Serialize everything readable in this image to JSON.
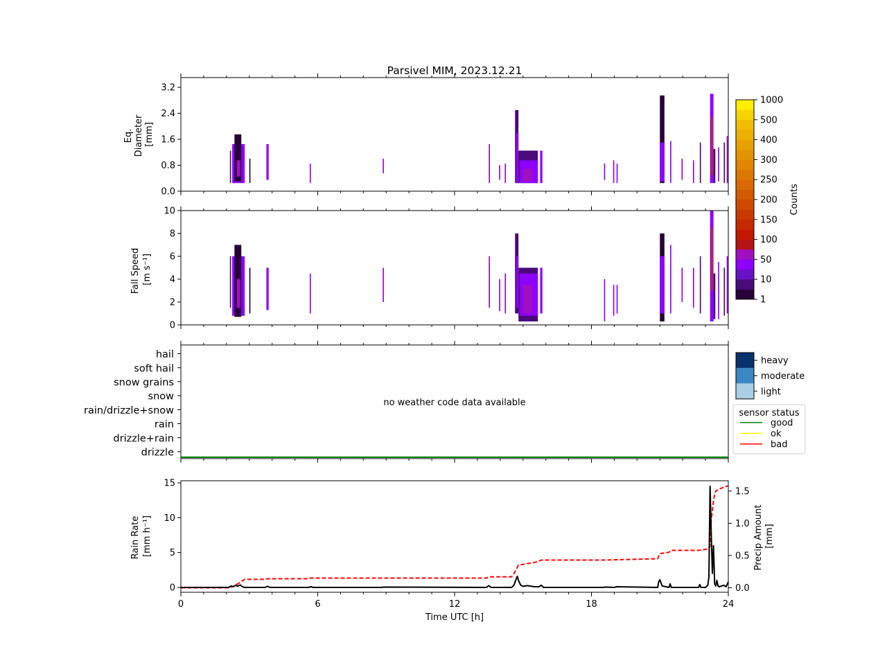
{
  "figure": {
    "title": "Parsivel MIM, 2023.12.21"
  },
  "chart_data": [
    {
      "panel": "diameter",
      "type": "heatmap",
      "ylabel": [
        "Eq.",
        "Diameter",
        "[mm]"
      ],
      "xlim": [
        0,
        24
      ],
      "ylim": [
        0,
        3.5
      ],
      "yticks": [
        0.0,
        0.8,
        1.6,
        2.4,
        3.2
      ],
      "ytick_labels": [
        "0.0",
        "0.8",
        "1.6",
        "2.4",
        "3.2"
      ],
      "bands": [
        {
          "x": 2.15,
          "w": 0.05,
          "y0": 0.25,
          "y1": 1.25,
          "c": 1
        },
        {
          "x": 2.25,
          "w": 0.55,
          "y0": 0.25,
          "y1": 1.45,
          "c": 2
        },
        {
          "x": 2.35,
          "w": 0.3,
          "y0": 0.3,
          "y1": 1.75,
          "c": 0
        },
        {
          "x": 2.45,
          "w": 0.15,
          "y0": 0.45,
          "y1": 0.95,
          "c": 3
        },
        {
          "x": 3.0,
          "w": 0.05,
          "y0": 0.25,
          "y1": 1.0,
          "c": 0
        },
        {
          "x": 3.75,
          "w": 0.1,
          "y0": 0.35,
          "y1": 1.45,
          "c": 2
        },
        {
          "x": 5.65,
          "w": 0.05,
          "y0": 0.25,
          "y1": 0.85,
          "c": 2
        },
        {
          "x": 8.85,
          "w": 0.05,
          "y0": 0.55,
          "y1": 1.0,
          "c": 2
        },
        {
          "x": 13.5,
          "w": 0.05,
          "y0": 0.25,
          "y1": 1.45,
          "c": 2
        },
        {
          "x": 13.95,
          "w": 0.05,
          "y0": 0.35,
          "y1": 0.8,
          "c": 2
        },
        {
          "x": 14.2,
          "w": 0.05,
          "y0": 0.25,
          "y1": 0.85,
          "c": 2
        },
        {
          "x": 14.65,
          "w": 0.15,
          "y0": 0.25,
          "y1": 2.5,
          "c": 1
        },
        {
          "x": 14.7,
          "w": 0.1,
          "y0": 0.25,
          "y1": 1.8,
          "c": 2
        },
        {
          "x": 14.8,
          "w": 0.85,
          "y0": 0.25,
          "y1": 1.25,
          "c": 1
        },
        {
          "x": 14.85,
          "w": 0.8,
          "y0": 0.25,
          "y1": 0.95,
          "c": 2
        },
        {
          "x": 15.0,
          "w": 0.4,
          "y0": 0.3,
          "y1": 0.7,
          "c": 3
        },
        {
          "x": 15.75,
          "w": 0.1,
          "y0": 0.25,
          "y1": 1.25,
          "c": 2
        },
        {
          "x": 18.55,
          "w": 0.05,
          "y0": 0.35,
          "y1": 0.85,
          "c": 2
        },
        {
          "x": 18.95,
          "w": 0.05,
          "y0": 0.25,
          "y1": 0.95,
          "c": 2
        },
        {
          "x": 19.1,
          "w": 0.05,
          "y0": 0.25,
          "y1": 0.85,
          "c": 2
        },
        {
          "x": 21.0,
          "w": 0.2,
          "y0": 0.25,
          "y1": 2.95,
          "c": 0
        },
        {
          "x": 21.0,
          "w": 0.2,
          "y0": 0.3,
          "y1": 1.5,
          "c": 2
        },
        {
          "x": 21.45,
          "w": 0.05,
          "y0": 0.25,
          "y1": 1.55,
          "c": 2
        },
        {
          "x": 21.95,
          "w": 0.05,
          "y0": 0.35,
          "y1": 1.0,
          "c": 2
        },
        {
          "x": 22.45,
          "w": 0.05,
          "y0": 0.25,
          "y1": 0.95,
          "c": 2
        },
        {
          "x": 22.75,
          "w": 0.05,
          "y0": 0.25,
          "y1": 1.5,
          "c": 1
        },
        {
          "x": 23.2,
          "w": 0.15,
          "y0": 0.25,
          "y1": 3.0,
          "c": 2
        },
        {
          "x": 23.25,
          "w": 0.07,
          "y0": 0.5,
          "y1": 2.3,
          "c": 6
        },
        {
          "x": 23.35,
          "w": 0.08,
          "y0": 0.25,
          "y1": 1.3,
          "c": 1
        },
        {
          "x": 23.55,
          "w": 0.05,
          "y0": 0.3,
          "y1": 1.35,
          "c": 2
        },
        {
          "x": 23.8,
          "w": 0.05,
          "y0": 0.25,
          "y1": 1.5,
          "c": 1
        },
        {
          "x": 23.93,
          "w": 0.05,
          "y0": 0.25,
          "y1": 1.7,
          "c": 2
        }
      ]
    },
    {
      "panel": "fallspeed",
      "type": "heatmap",
      "ylabel": [
        "Fall Speed",
        "[m s⁻¹]"
      ],
      "xlim": [
        0,
        24
      ],
      "ylim": [
        0,
        10
      ],
      "yticks": [
        0,
        2,
        4,
        6,
        8,
        10
      ],
      "ytick_labels": [
        "0",
        "2",
        "4",
        "6",
        "8",
        "10"
      ],
      "bands": [
        {
          "x": 2.15,
          "w": 0.05,
          "y0": 1.5,
          "y1": 6.0,
          "c": 1
        },
        {
          "x": 2.25,
          "w": 0.55,
          "y0": 0.8,
          "y1": 6.0,
          "c": 2
        },
        {
          "x": 2.35,
          "w": 0.3,
          "y0": 0.7,
          "y1": 7.0,
          "c": 0
        },
        {
          "x": 2.45,
          "w": 0.15,
          "y0": 1.5,
          "y1": 4.0,
          "c": 3
        },
        {
          "x": 3.0,
          "w": 0.05,
          "y0": 1.0,
          "y1": 5.0,
          "c": 0
        },
        {
          "x": 3.75,
          "w": 0.1,
          "y0": 1.3,
          "y1": 5.0,
          "c": 2
        },
        {
          "x": 5.65,
          "w": 0.05,
          "y0": 1.0,
          "y1": 4.5,
          "c": 2
        },
        {
          "x": 8.85,
          "w": 0.05,
          "y0": 2.0,
          "y1": 5.0,
          "c": 2
        },
        {
          "x": 13.5,
          "w": 0.05,
          "y0": 1.5,
          "y1": 6.0,
          "c": 2
        },
        {
          "x": 13.95,
          "w": 0.05,
          "y0": 1.2,
          "y1": 4.0,
          "c": 2
        },
        {
          "x": 14.2,
          "w": 0.05,
          "y0": 1.0,
          "y1": 4.5,
          "c": 2
        },
        {
          "x": 14.65,
          "w": 0.15,
          "y0": 1.0,
          "y1": 8.0,
          "c": 1
        },
        {
          "x": 14.7,
          "w": 0.1,
          "y0": 1.5,
          "y1": 6.0,
          "c": 2
        },
        {
          "x": 14.8,
          "w": 0.85,
          "y0": 0.3,
          "y1": 5.0,
          "c": 1
        },
        {
          "x": 14.85,
          "w": 0.8,
          "y0": 0.8,
          "y1": 4.5,
          "c": 2
        },
        {
          "x": 15.0,
          "w": 0.4,
          "y0": 1.0,
          "y1": 3.5,
          "c": 3
        },
        {
          "x": 15.75,
          "w": 0.1,
          "y0": 1.0,
          "y1": 5.0,
          "c": 2
        },
        {
          "x": 18.55,
          "w": 0.05,
          "y0": 0.3,
          "y1": 4.0,
          "c": 2
        },
        {
          "x": 18.95,
          "w": 0.05,
          "y0": 0.8,
          "y1": 3.5,
          "c": 2
        },
        {
          "x": 19.1,
          "w": 0.05,
          "y0": 1.0,
          "y1": 3.5,
          "c": 2
        },
        {
          "x": 21.0,
          "w": 0.2,
          "y0": 0.3,
          "y1": 8.0,
          "c": 0
        },
        {
          "x": 21.0,
          "w": 0.2,
          "y0": 1.0,
          "y1": 6.0,
          "c": 2
        },
        {
          "x": 21.45,
          "w": 0.05,
          "y0": 1.0,
          "y1": 7.0,
          "c": 2
        },
        {
          "x": 21.95,
          "w": 0.05,
          "y0": 2.0,
          "y1": 5.0,
          "c": 2
        },
        {
          "x": 22.45,
          "w": 0.05,
          "y0": 1.5,
          "y1": 5.0,
          "c": 2
        },
        {
          "x": 22.75,
          "w": 0.05,
          "y0": 1.0,
          "y1": 6.0,
          "c": 1
        },
        {
          "x": 23.2,
          "w": 0.15,
          "y0": 0.3,
          "y1": 10.0,
          "c": 2
        },
        {
          "x": 23.25,
          "w": 0.07,
          "y0": 3.0,
          "y1": 8.5,
          "c": 6
        },
        {
          "x": 23.35,
          "w": 0.08,
          "y0": 0.5,
          "y1": 4.5,
          "c": 1
        },
        {
          "x": 23.55,
          "w": 0.05,
          "y0": 0.5,
          "y1": 5.5,
          "c": 2
        },
        {
          "x": 23.8,
          "w": 0.05,
          "y0": 0.8,
          "y1": 5.0,
          "c": 1
        },
        {
          "x": 23.93,
          "w": 0.05,
          "y0": 1.0,
          "y1": 6.0,
          "c": 2
        }
      ]
    },
    {
      "panel": "weather_code",
      "type": "heatmap",
      "categories": [
        "drizzle",
        "drizzle+rain",
        "rain",
        "rain/drizzle+snow",
        "snow",
        "snow grains",
        "soft hail",
        "hail"
      ],
      "annotation": "no weather code data available",
      "sensor_status": {
        "value": "good",
        "x": [
          0,
          24
        ]
      },
      "intensity_legend": [
        {
          "label": "heavy",
          "color": "#08306b"
        },
        {
          "label": "moderate",
          "color": "#3a88c4"
        },
        {
          "label": "light",
          "color": "#a9cfe5"
        }
      ],
      "status_legend": {
        "title": "sensor status",
        "entries": [
          {
            "label": "good",
            "color": "#008000"
          },
          {
            "label": "ok",
            "color": "#ffff00"
          },
          {
            "label": "bad",
            "color": "#ff0000"
          }
        ]
      }
    },
    {
      "panel": "rain",
      "type": "line",
      "xlabel": "Time UTC [h]",
      "xlim": [
        0,
        24
      ],
      "xticks": [
        0,
        6,
        12,
        18,
        24
      ],
      "xtick_labels": [
        "0",
        "6",
        "12",
        "18",
        "24"
      ],
      "ylabel": [
        "Rain Rate",
        "[mm h⁻¹]"
      ],
      "ylim": [
        -0.7,
        15.3
      ],
      "yticks": [
        0,
        5,
        10,
        15
      ],
      "ytick_labels": [
        "0",
        "5",
        "10",
        "15"
      ],
      "y2label": [
        "Precip Amount",
        "[mm]"
      ],
      "y2lim": [
        -0.07,
        1.66
      ],
      "y2ticks": [
        0.0,
        0.5,
        1.0,
        1.5
      ],
      "y2tick_labels": [
        "0.0",
        "0.5",
        "1.0",
        "1.5"
      ],
      "series": [
        {
          "axis": "left",
          "color": "#000000",
          "style": "solid",
          "x": [
            0,
            2.1,
            2.2,
            2.3,
            2.4,
            2.5,
            2.6,
            2.7,
            2.8,
            3.0,
            3.7,
            3.8,
            3.9,
            5.6,
            5.7,
            5.8,
            8.8,
            8.9,
            13.4,
            13.5,
            13.6,
            14.5,
            14.6,
            14.7,
            14.75,
            14.8,
            14.9,
            15.0,
            15.2,
            15.5,
            15.7,
            15.8,
            15.9,
            18.5,
            18.6,
            19.0,
            19.1,
            20.9,
            20.95,
            21.0,
            21.1,
            21.4,
            21.45,
            21.5,
            22.7,
            22.75,
            22.8,
            23.0,
            23.1,
            23.15,
            23.2,
            23.25,
            23.3,
            23.35,
            23.4,
            23.45,
            23.5,
            23.55,
            23.6,
            23.8,
            23.9,
            24.0
          ],
          "y": [
            0,
            0,
            0.2,
            0.1,
            0.3,
            0.15,
            0.35,
            0.1,
            0,
            0,
            0,
            0.15,
            0,
            0,
            0.1,
            0,
            0,
            0.05,
            0,
            0.25,
            0,
            0,
            0.3,
            1.2,
            1.6,
            1.0,
            0.3,
            0.15,
            0.25,
            0.1,
            0.1,
            0.3,
            0,
            0,
            0.05,
            0,
            0.1,
            0,
            0.8,
            1.1,
            0.2,
            0,
            0.5,
            0,
            0,
            0.4,
            0,
            0,
            0.3,
            1.5,
            14.5,
            8.0,
            2.0,
            6.0,
            0.5,
            0.2,
            1.0,
            0.2,
            0.1,
            0.3,
            0.1,
            0.8
          ]
        },
        {
          "axis": "right",
          "color": "#ff0000",
          "style": "dashed",
          "x": [
            0,
            2.1,
            2.3,
            2.5,
            2.75,
            2.8,
            3.7,
            3.8,
            5.6,
            5.7,
            13.4,
            13.5,
            14.5,
            14.6,
            14.8,
            15.6,
            15.8,
            18.0,
            18.5,
            20.9,
            21.0,
            21.4,
            21.5,
            22.7,
            23.1,
            23.2,
            23.25,
            23.3,
            23.35,
            23.4,
            23.45,
            23.6,
            23.8,
            24.0
          ],
          "y": [
            0,
            0,
            0.02,
            0.06,
            0.12,
            0.13,
            0.13,
            0.14,
            0.14,
            0.15,
            0.15,
            0.17,
            0.17,
            0.22,
            0.35,
            0.4,
            0.43,
            0.43,
            0.43,
            0.45,
            0.53,
            0.55,
            0.58,
            0.58,
            0.6,
            0.65,
            1.05,
            1.2,
            1.35,
            1.45,
            1.5,
            1.53,
            1.56,
            1.58
          ]
        }
      ]
    }
  ],
  "colorbar": {
    "label": "Counts",
    "tick_labels": [
      "1",
      "10",
      "50",
      "100",
      "150",
      "200",
      "250",
      "300",
      "400",
      "500",
      "1000"
    ],
    "colors": [
      "#2a0038",
      "#4a0a7a",
      "#6812c5",
      "#8e00ff",
      "#a010c0",
      "#b41414",
      "#c21800",
      "#c62800",
      "#ca3a00",
      "#cf4a00",
      "#d35a00",
      "#d86a00",
      "#dc7800",
      "#e08600",
      "#e49400",
      "#e8a200",
      "#ecb000",
      "#f0bd00",
      "#f6d400",
      "#ffee00"
    ]
  }
}
